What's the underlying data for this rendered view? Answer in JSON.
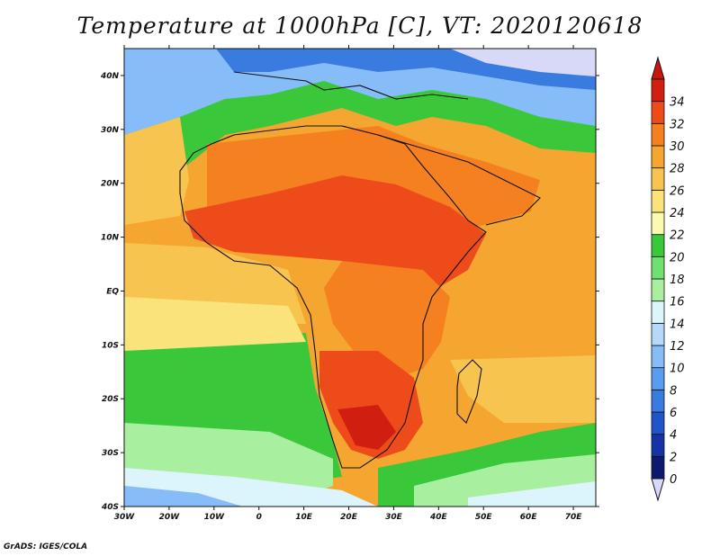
{
  "title": "Temperature at 1000hPa [C], VT: 2020120618",
  "credit": "GrADS: IGES/COLA",
  "map": {
    "lon_range": [
      -30,
      75
    ],
    "lat_range": [
      -40,
      45
    ],
    "lon_ticks": [
      {
        "value": -30,
        "label": "30W"
      },
      {
        "value": -20,
        "label": "20W"
      },
      {
        "value": -10,
        "label": "10W"
      },
      {
        "value": 0,
        "label": "0"
      },
      {
        "value": 10,
        "label": "10E"
      },
      {
        "value": 20,
        "label": "20E"
      },
      {
        "value": 30,
        "label": "30E"
      },
      {
        "value": 40,
        "label": "40E"
      },
      {
        "value": 50,
        "label": "50E"
      },
      {
        "value": 60,
        "label": "60E"
      },
      {
        "value": 70,
        "label": "70E"
      }
    ],
    "lat_ticks": [
      {
        "value": 40,
        "label": "40N"
      },
      {
        "value": 30,
        "label": "30N"
      },
      {
        "value": 20,
        "label": "20N"
      },
      {
        "value": 10,
        "label": "10N"
      },
      {
        "value": 0,
        "label": "EQ"
      },
      {
        "value": -10,
        "label": "10S"
      },
      {
        "value": -20,
        "label": "20S"
      },
      {
        "value": -30,
        "label": "30S"
      },
      {
        "value": -40,
        "label": "40S"
      }
    ]
  },
  "colorbar": {
    "labels": [
      "0",
      "2",
      "4",
      "6",
      "8",
      "10",
      "12",
      "14",
      "16",
      "18",
      "20",
      "22",
      "24",
      "26",
      "28",
      "30",
      "32",
      "34"
    ],
    "colors": [
      "#0b1a6e",
      "#1533a6",
      "#1f55c8",
      "#3a7be0",
      "#5a9cf0",
      "#86bdf8",
      "#b4d9fb",
      "#dcf5fc",
      "#a8f0a0",
      "#70e070",
      "#3ac83a",
      "#fafab0",
      "#fae37a",
      "#f8c450",
      "#f5a630",
      "#f5801f",
      "#ee4b1a",
      "#d01f10"
    ],
    "end_colors": {
      "low": "#d8d8f8",
      "high": "#c8160a"
    }
  }
}
